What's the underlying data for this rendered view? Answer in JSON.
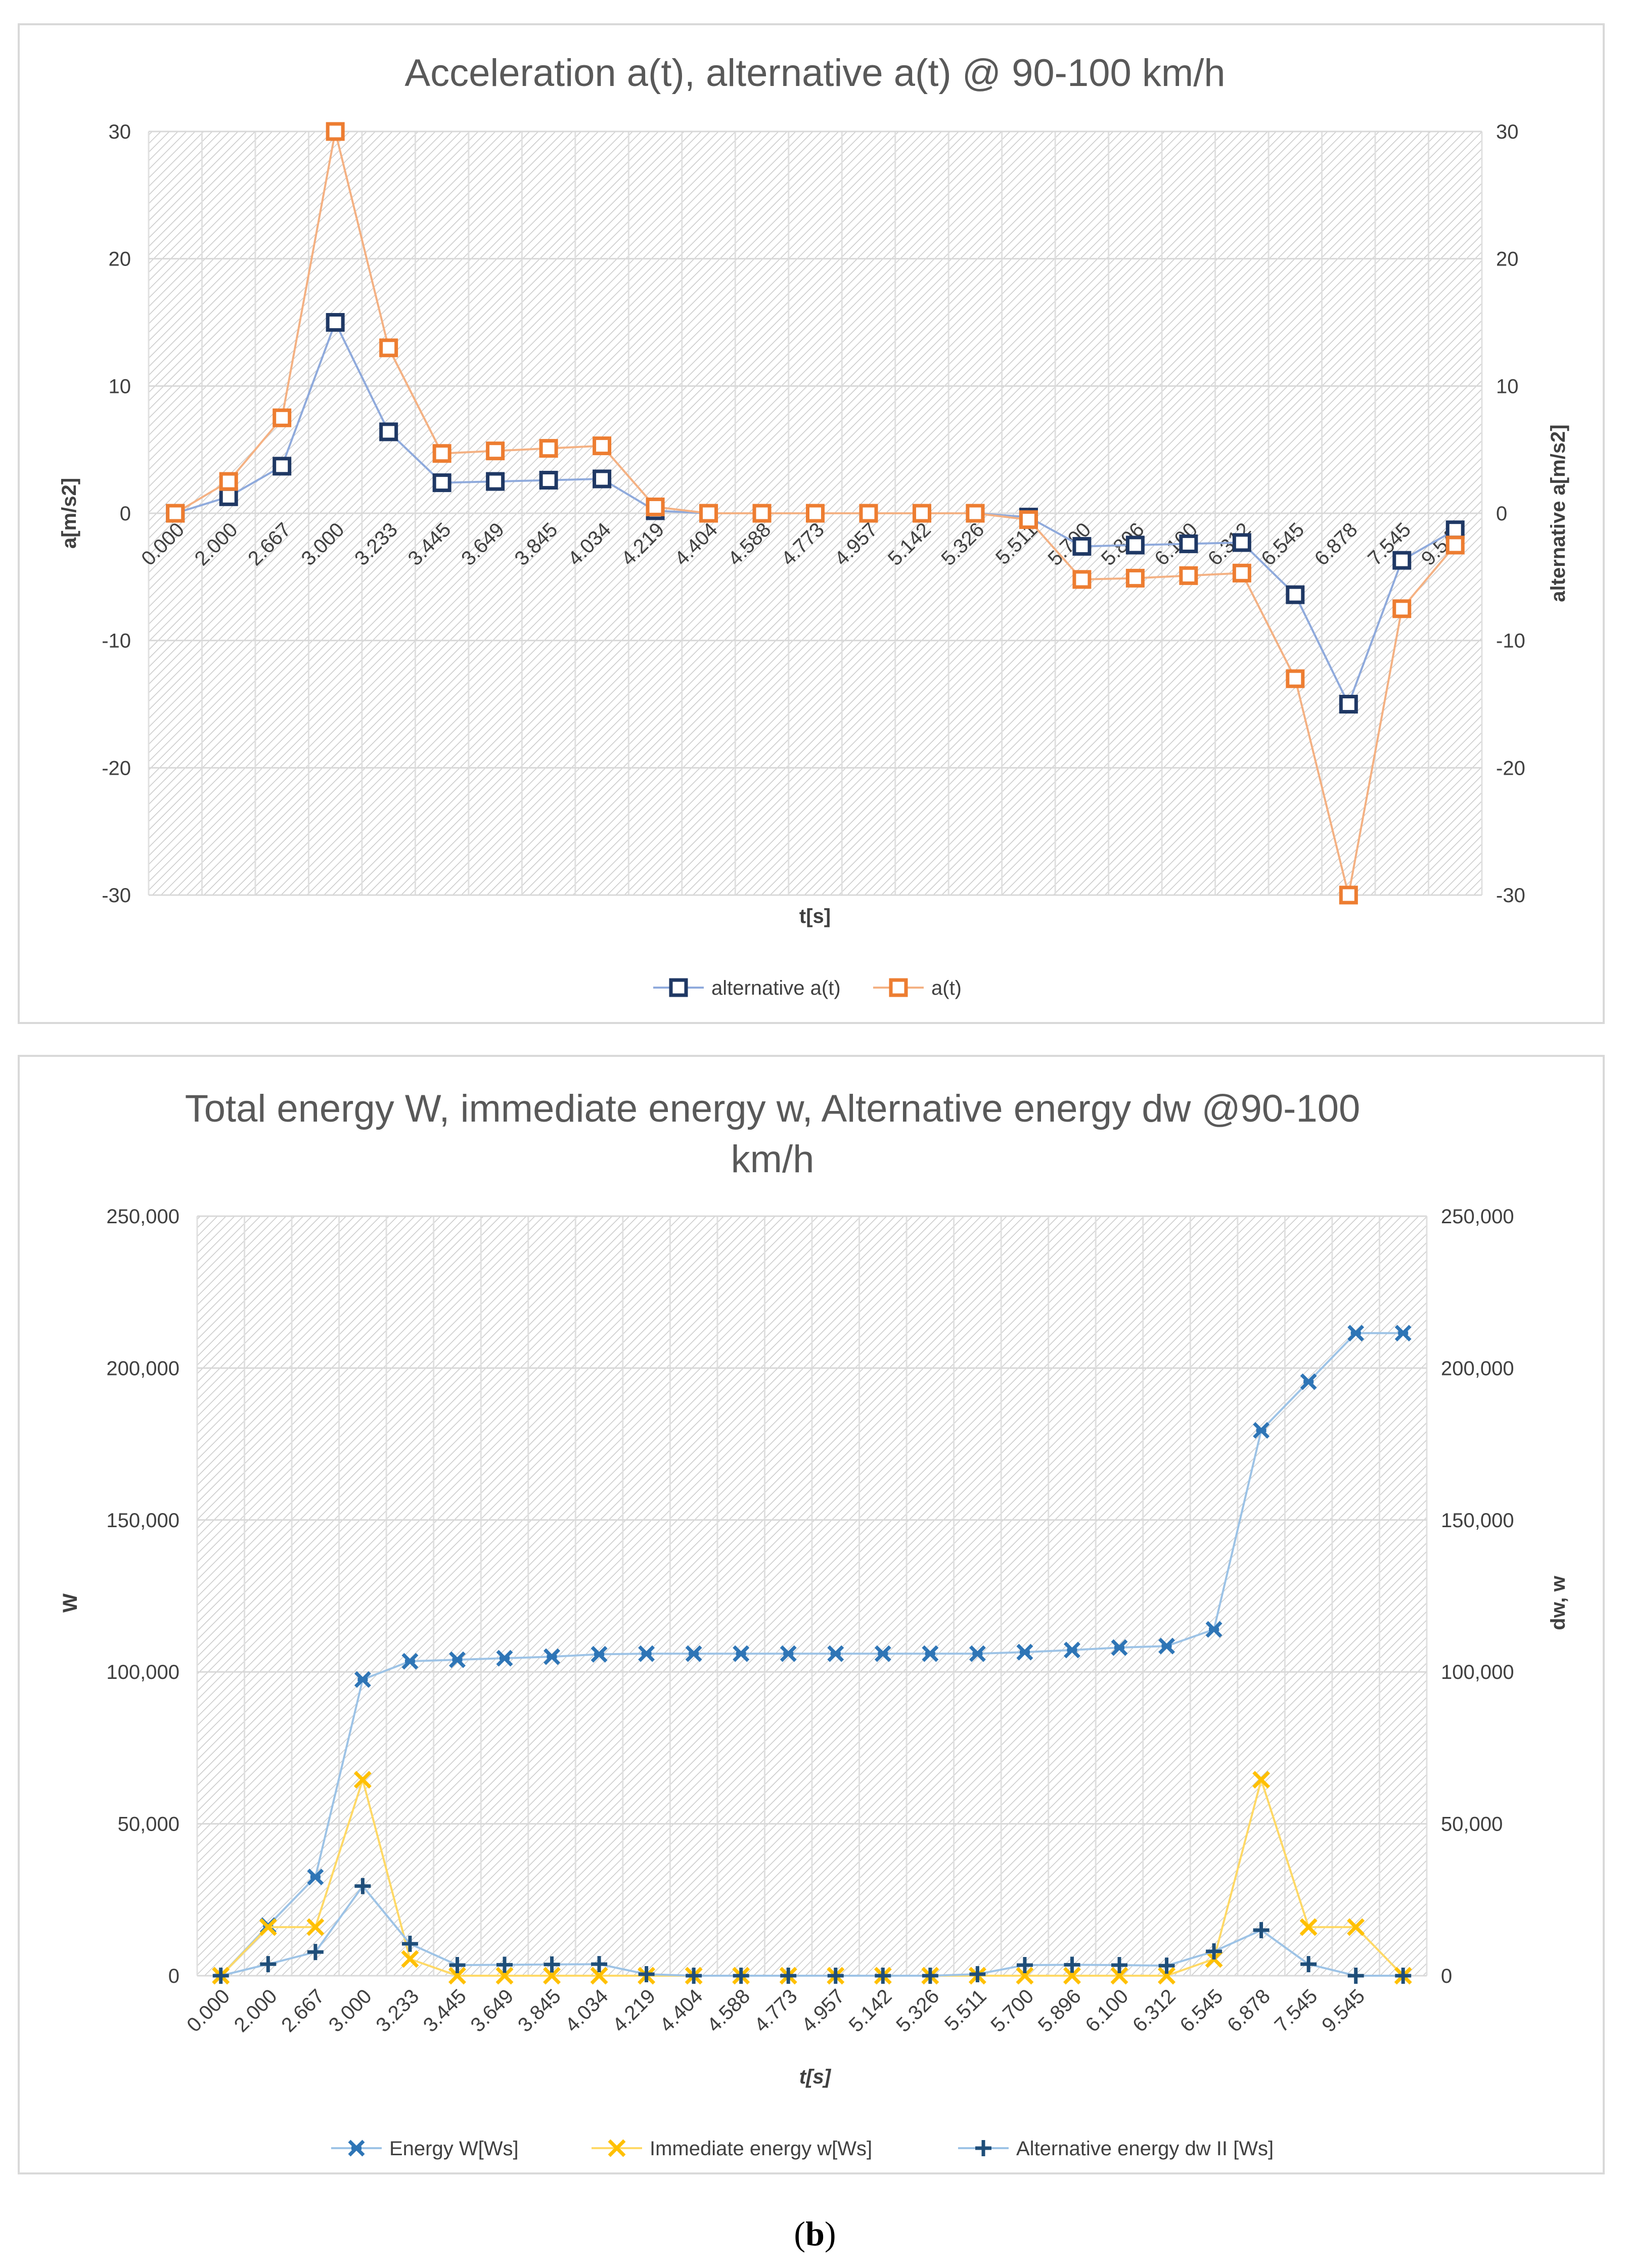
{
  "caption": {
    "open": "(",
    "letter": "b",
    "close": ")"
  },
  "chart_data": [
    {
      "type": "line",
      "title": "Acceleration a(t), alternative  a(t) @ 90-100 km/h",
      "xlabel": "t[s]",
      "ylabel": "a[m/s2]",
      "y2label": "alternative a[m/s2]",
      "ylim": [
        -30,
        30
      ],
      "y2lim": [
        -30,
        30
      ],
      "yticks": [
        "30",
        "20",
        "10",
        "0",
        "-10",
        "-20",
        "-30"
      ],
      "y2ticks": [
        "30",
        "20",
        "10",
        "0",
        "-10",
        "-20",
        "-30"
      ],
      "categories": [
        "0.000",
        "2.000",
        "2.667",
        "3.000",
        "3.233",
        "3.445",
        "3.649",
        "3.845",
        "4.034",
        "4.219",
        "4.404",
        "4.588",
        "4.773",
        "4.957",
        "5.142",
        "5.326",
        "5.511",
        "5.700",
        "5.896",
        "6.100",
        "6.312",
        "6.545",
        "6.878",
        "7.545",
        "9.545"
      ],
      "grid": true,
      "legend_position": "bottom",
      "series": [
        {
          "name": "alternative a(t)",
          "color": "#1F3864",
          "line_color": "#8FAADC",
          "marker": "square",
          "axis": "secondary",
          "values": [
            0,
            1.3,
            3.7,
            15,
            6.4,
            2.4,
            2.5,
            2.6,
            2.7,
            0.2,
            0,
            0,
            0,
            0,
            0,
            0,
            -0.3,
            -2.6,
            -2.5,
            -2.4,
            -2.3,
            -6.4,
            -15,
            -3.7,
            -1.3
          ]
        },
        {
          "name": "a(t)",
          "color": "#ED7D31",
          "line_color": "#F4B183",
          "marker": "square",
          "axis": "primary",
          "values": [
            0,
            2.5,
            7.5,
            30,
            13,
            4.7,
            4.9,
            5.1,
            5.3,
            0.5,
            0,
            0,
            0,
            0,
            0,
            0,
            -0.5,
            -5.2,
            -5.1,
            -4.9,
            -4.7,
            -13,
            -30,
            -7.5,
            -2.5
          ]
        }
      ]
    },
    {
      "type": "line",
      "title": "Total energy W, immediate energy w, Alternative energy dw @90-100 km/h",
      "title_lines": [
        "Total energy W, immediate energy w, Alternative energy dw @90-100",
        "km/h"
      ],
      "xlabel": "t[s]",
      "ylabel": "W",
      "y2label": "dw, w",
      "ylim": [
        0,
        250000
      ],
      "y2lim": [
        0,
        250000
      ],
      "yticks": [
        "250,000",
        "200,000",
        "150,000",
        "100,000",
        "50,000",
        "0"
      ],
      "y2ticks": [
        "250,000",
        "200,000",
        "150,000",
        "100,000",
        "50,000",
        "0"
      ],
      "categories": [
        "0.000",
        "2.000",
        "2.667",
        "3.000",
        "3.233",
        "3.445",
        "3.649",
        "3.845",
        "4.034",
        "4.219",
        "4.404",
        "4.588",
        "4.773",
        "4.957",
        "5.142",
        "5.326",
        "5.511",
        "5.700",
        "5.896",
        "6.100",
        "6.312",
        "6.545",
        "6.878",
        "7.545",
        "9.545",
        ""
      ],
      "grid": true,
      "legend_position": "bottom",
      "series": [
        {
          "name": "Energy W[Ws]",
          "color": "#2E75B6",
          "line_color": "#9DC3E6",
          "marker": "star",
          "axis": "primary",
          "values": [
            0,
            16500,
            32500,
            97500,
            103500,
            104000,
            104500,
            105000,
            105800,
            106000,
            106000,
            106000,
            106000,
            106000,
            106000,
            106000,
            106000,
            106500,
            107200,
            108000,
            108500,
            114000,
            179500,
            195500,
            211500,
            211500
          ]
        },
        {
          "name": "Immediate energy w[Ws]",
          "color": "#FFC000",
          "line_color": "#FFD966",
          "marker": "x",
          "axis": "secondary",
          "values": [
            0,
            16000,
            16000,
            64500,
            5500,
            0,
            0,
            0,
            0,
            0,
            0,
            0,
            0,
            0,
            0,
            0,
            0,
            0,
            0,
            0,
            0,
            5500,
            64500,
            16000,
            16000,
            0
          ]
        },
        {
          "name": "Alternative energy dw II [Ws]",
          "color": "#1F4E79",
          "line_color": "#9DC3E6",
          "marker": "plus",
          "axis": "secondary",
          "values": [
            0,
            3800,
            7800,
            29500,
            10500,
            3500,
            3600,
            3700,
            3800,
            500,
            0,
            0,
            0,
            0,
            0,
            0,
            500,
            3500,
            3600,
            3500,
            3300,
            8000,
            15000,
            3800,
            0,
            0
          ]
        }
      ]
    }
  ]
}
